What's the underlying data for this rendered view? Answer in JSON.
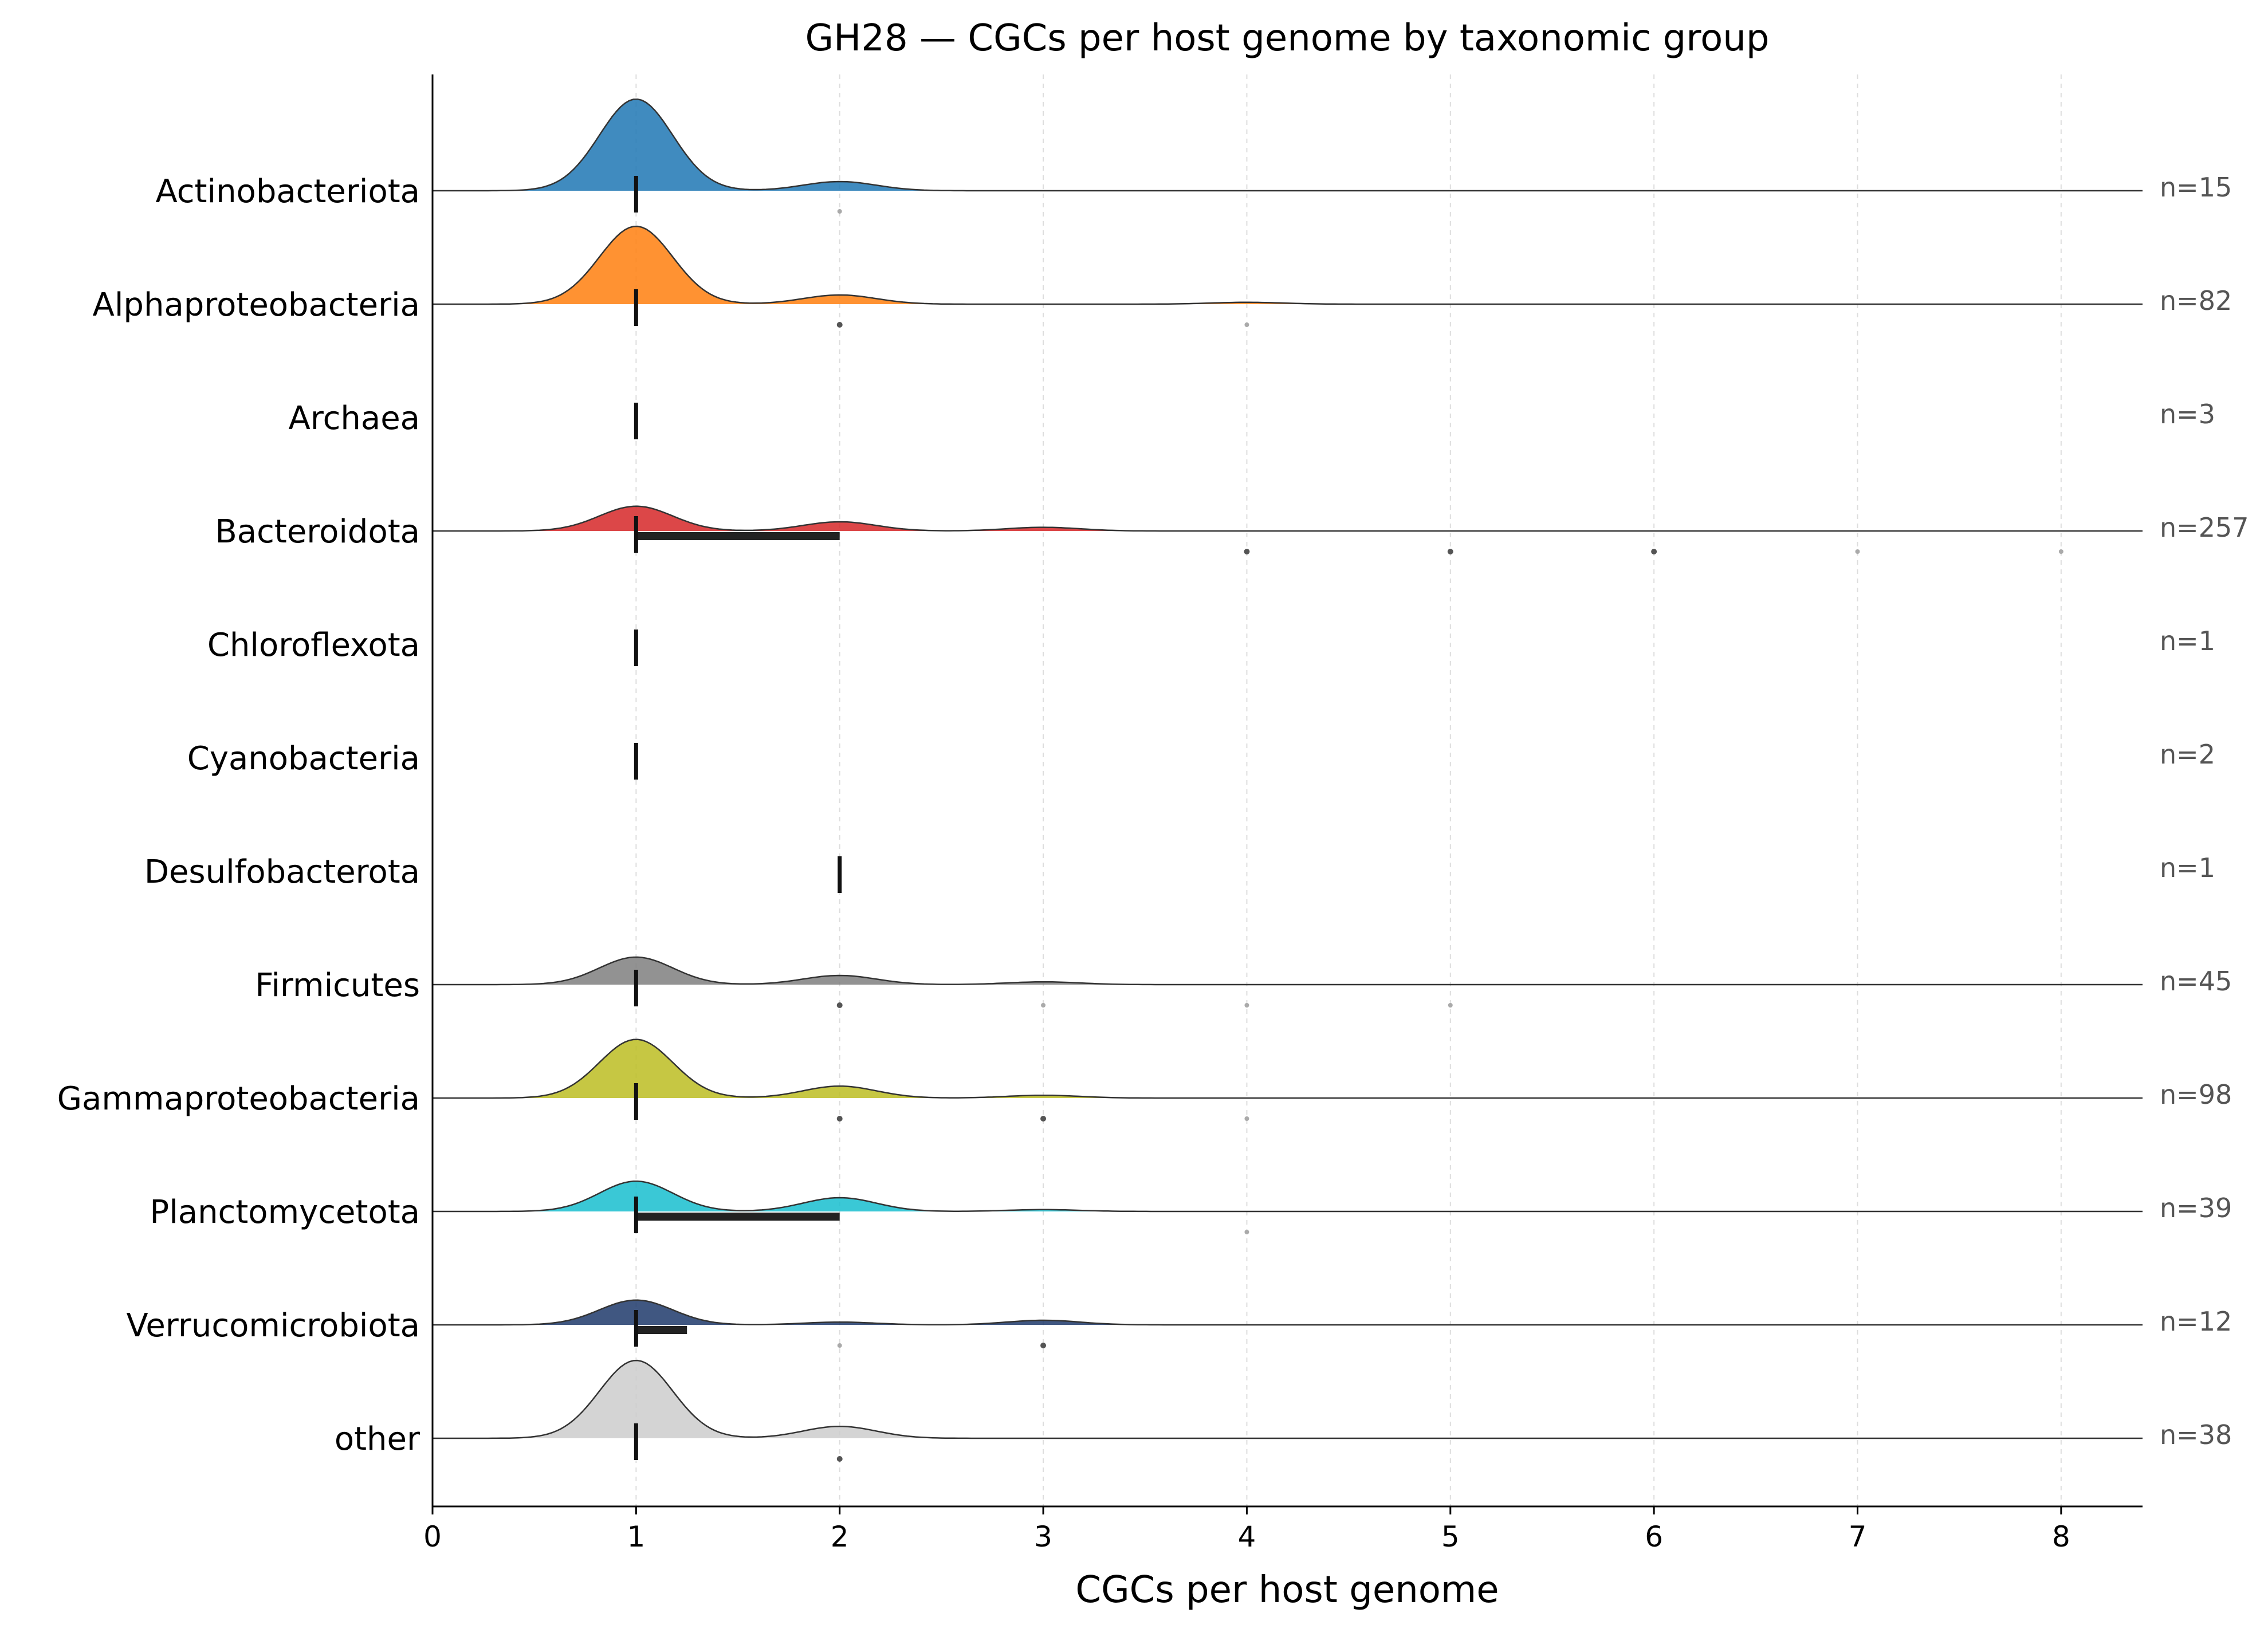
{
  "chart_data": {
    "type": "ridgeline",
    "title": "GH28 — CGCs per host genome by taxonomic group",
    "xlabel": "CGCs per host genome",
    "ylabel": "",
    "xlim": [
      0,
      8.4
    ],
    "xticks": [
      "0",
      "1",
      "2",
      "3",
      "4",
      "5",
      "6",
      "7",
      "8"
    ],
    "grid": "vertical dashed at integer ticks",
    "groups": [
      {
        "name": "Actinobacteriota",
        "n_label": "n=15",
        "color": "#1f77b4",
        "density_peaks": [
          [
            1,
            1.0
          ],
          [
            2,
            0.1
          ]
        ],
        "median": 1,
        "iqr": [
          1,
          1
        ],
        "outliers": [
          {
            "x": 2,
            "alpha": "light"
          }
        ]
      },
      {
        "name": "Alphaproteobacteria",
        "n_label": "n=82",
        "color": "#ff7f0e",
        "density_peaks": [
          [
            1,
            0.85
          ],
          [
            2,
            0.1
          ],
          [
            4,
            0.02
          ]
        ],
        "median": 1,
        "iqr": [
          1,
          1
        ],
        "outliers": [
          {
            "x": 2,
            "alpha": "dark"
          },
          {
            "x": 4,
            "alpha": "light"
          }
        ]
      },
      {
        "name": "Archaea",
        "n_label": "n=3",
        "color": "#9467bd",
        "density_peaks": [],
        "median": 1,
        "iqr": [
          1,
          1
        ],
        "outliers": []
      },
      {
        "name": "Bacteroidota",
        "n_label": "n=257",
        "color": "#d62728",
        "density_peaks": [
          [
            1,
            0.27
          ],
          [
            2,
            0.1
          ],
          [
            3,
            0.04
          ]
        ],
        "median": 1,
        "iqr": [
          1,
          2
        ],
        "outliers": [
          {
            "x": 4,
            "alpha": "dark"
          },
          {
            "x": 5,
            "alpha": "dark"
          },
          {
            "x": 6,
            "alpha": "dark"
          },
          {
            "x": 7,
            "alpha": "light"
          },
          {
            "x": 8,
            "alpha": "light"
          }
        ]
      },
      {
        "name": "Chloroflexota",
        "n_label": "n=1",
        "color": "#8c564b",
        "density_peaks": [],
        "median": 1,
        "iqr": [
          1,
          1
        ],
        "outliers": []
      },
      {
        "name": "Cyanobacteria",
        "n_label": "n=2",
        "color": "#e377c2",
        "density_peaks": [],
        "median": 1,
        "iqr": [
          1,
          1
        ],
        "outliers": []
      },
      {
        "name": "Desulfobacterota",
        "n_label": "n=1",
        "color": "#bcbd22",
        "density_peaks": [],
        "median": 2,
        "iqr": [
          2,
          2
        ],
        "outliers": []
      },
      {
        "name": "Firmicutes",
        "n_label": "n=45",
        "color": "#7f7f7f",
        "density_peaks": [
          [
            1,
            0.3
          ],
          [
            2,
            0.1
          ],
          [
            3,
            0.03
          ]
        ],
        "median": 1,
        "iqr": [
          1,
          1
        ],
        "outliers": [
          {
            "x": 2,
            "alpha": "dark"
          },
          {
            "x": 3,
            "alpha": "light"
          },
          {
            "x": 4,
            "alpha": "light"
          },
          {
            "x": 5,
            "alpha": "light"
          }
        ]
      },
      {
        "name": "Gammaproteobacteria",
        "n_label": "n=98",
        "color": "#bcbd22",
        "density_peaks": [
          [
            1,
            0.64
          ],
          [
            2,
            0.13
          ],
          [
            3,
            0.03
          ]
        ],
        "median": 1,
        "iqr": [
          1,
          1
        ],
        "outliers": [
          {
            "x": 2,
            "alpha": "dark"
          },
          {
            "x": 3,
            "alpha": "dark"
          },
          {
            "x": 4,
            "alpha": "light"
          }
        ]
      },
      {
        "name": "Planctomycetota",
        "n_label": "n=39",
        "color": "#17becf",
        "density_peaks": [
          [
            1,
            0.33
          ],
          [
            2,
            0.15
          ],
          [
            3,
            0.02
          ]
        ],
        "median": 1,
        "iqr": [
          1,
          2
        ],
        "outliers": [
          {
            "x": 4,
            "alpha": "light"
          }
        ]
      },
      {
        "name": "Verrucomicrobiota",
        "n_label": "n=12",
        "color": "#1f3a6b",
        "density_peaks": [
          [
            1,
            0.27
          ],
          [
            2,
            0.03
          ],
          [
            3,
            0.05
          ]
        ],
        "median": 1,
        "iqr": [
          1,
          1.25
        ],
        "outliers": [
          {
            "x": 2,
            "alpha": "light"
          },
          {
            "x": 3,
            "alpha": "dark"
          }
        ]
      },
      {
        "name": "other",
        "n_label": "n=38",
        "color": "#cccccc",
        "density_peaks": [
          [
            1,
            0.85
          ],
          [
            2,
            0.13
          ]
        ],
        "median": 1,
        "iqr": [
          1,
          1
        ],
        "outliers": [
          {
            "x": 2,
            "alpha": "dark"
          }
        ]
      }
    ]
  }
}
